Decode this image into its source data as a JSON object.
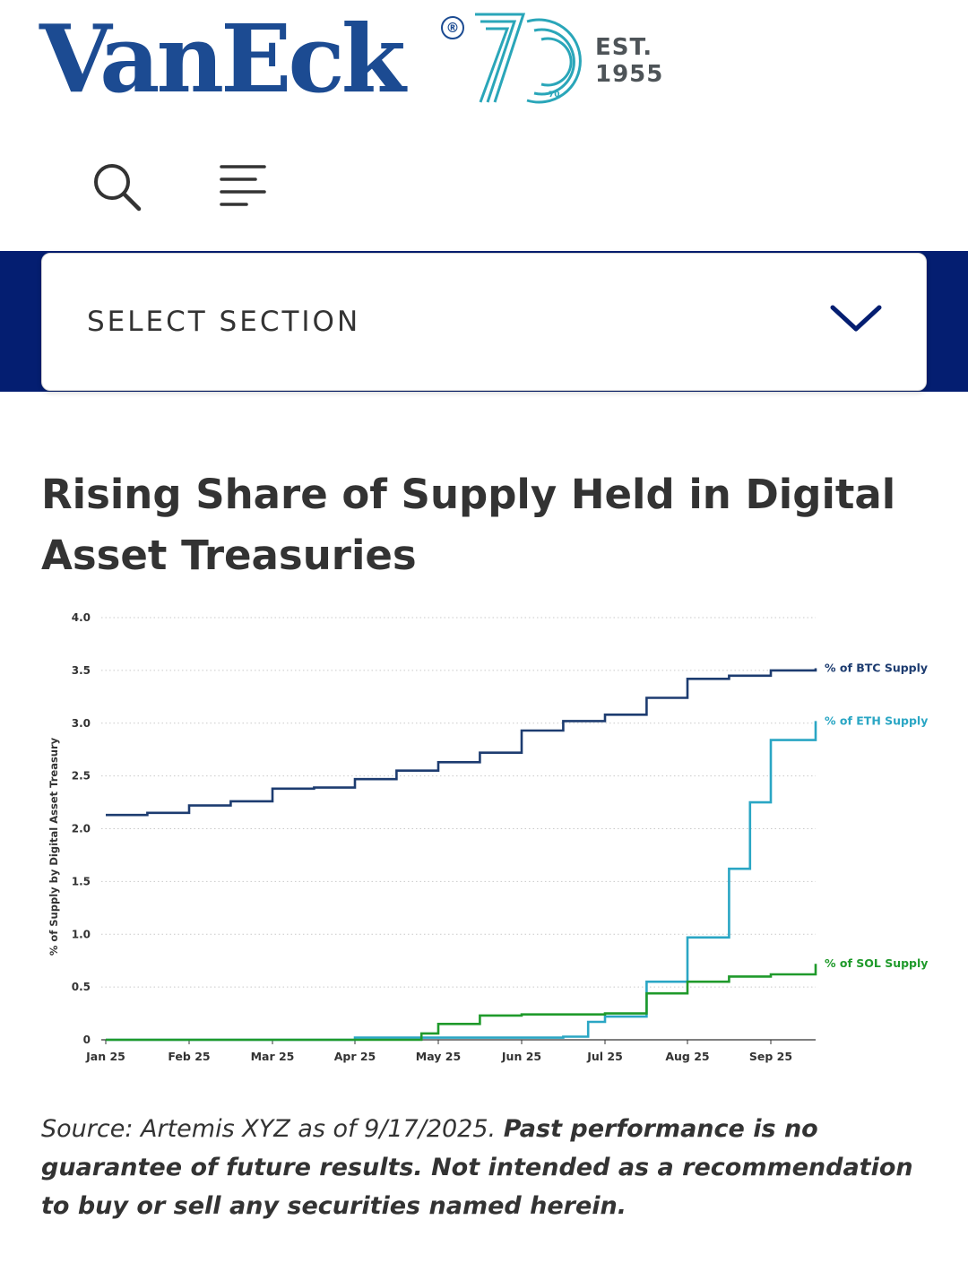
{
  "header": {
    "logo_text": "VanEck",
    "logo_registered": "®",
    "logo_anniversary": "70",
    "logo_est_line1": "EST.",
    "logo_est_line2": "1955",
    "colors": {
      "brand_blue": "#1c4b92",
      "teal": "#2aa6b9",
      "band_navy": "#041e71"
    },
    "icons": [
      "search-icon",
      "menu-icon"
    ]
  },
  "section_select": {
    "label": "SELECT SECTION",
    "icon": "chevron-down-icon"
  },
  "article": {
    "title": "Rising Share of Supply Held in Digital Asset Treasuries",
    "footnote_source": "Source: Artemis XYZ as of 9/17/2025.",
    "footnote_disclaimer": "Past performance is no guarantee of future results. Not intended as a recommendation to buy or sell any securities named herein."
  },
  "chart_data": {
    "type": "line",
    "ylabel": "% of Supply by Digital Asset Treasury",
    "ylim": [
      0,
      4.0
    ],
    "yticks": [
      "0",
      "0.5",
      "1.0",
      "1.5",
      "2.0",
      "2.5",
      "3.0",
      "3.5",
      "4.0"
    ],
    "xticks": [
      "Jan 25",
      "Feb 25",
      "Mar 25",
      "Apr 25",
      "May 25",
      "Jun 25",
      "Jul 25",
      "Aug 25",
      "Sep 25"
    ],
    "grid": "horizontal dotted",
    "series": [
      {
        "name": "% of BTC Supply",
        "color": "#1d3c70",
        "points": [
          [
            "Jan 25",
            2.13
          ],
          [
            "Jan 25 (mid)",
            2.15
          ],
          [
            "Feb 25",
            2.22
          ],
          [
            "Feb 25 (mid)",
            2.26
          ],
          [
            "Mar 25",
            2.38
          ],
          [
            "Mar 25 (mid)",
            2.39
          ],
          [
            "Apr 25",
            2.47
          ],
          [
            "Apr 25 (mid)",
            2.55
          ],
          [
            "May 25",
            2.63
          ],
          [
            "May 25 (mid)",
            2.72
          ],
          [
            "Jun 25",
            2.93
          ],
          [
            "Jun 25 (mid)",
            3.02
          ],
          [
            "Jul 25",
            3.08
          ],
          [
            "Jul 25 (mid)",
            3.24
          ],
          [
            "Aug 25",
            3.42
          ],
          [
            "Aug 25 (mid)",
            3.45
          ],
          [
            "Sep 25",
            3.5
          ],
          [
            "Sep 25 (end)",
            3.52
          ]
        ]
      },
      {
        "name": "% of ETH Supply",
        "color": "#2aa6c4",
        "points": [
          [
            "Jan 25",
            0.0
          ],
          [
            "Apr 25",
            0.02
          ],
          [
            "Jun 25 (mid)",
            0.03
          ],
          [
            "Jun 25 (late)",
            0.17
          ],
          [
            "Jul 25",
            0.22
          ],
          [
            "Jul 25 (mid)",
            0.55
          ],
          [
            "Aug 25",
            0.97
          ],
          [
            "Aug 25 (mid)",
            1.62
          ],
          [
            "Sep 25 (early)",
            2.25
          ],
          [
            "Sep 25",
            2.84
          ],
          [
            "Sep 25 (end)",
            3.02
          ]
        ]
      },
      {
        "name": "% of SOL Supply",
        "color": "#1f9a2b",
        "points": [
          [
            "Jan 25",
            0.0
          ],
          [
            "Apr 25",
            0.0
          ],
          [
            "Apr 25 (late)",
            0.06
          ],
          [
            "May 25",
            0.15
          ],
          [
            "May 25 (mid)",
            0.23
          ],
          [
            "Jun 25",
            0.24
          ],
          [
            "Jul 25",
            0.25
          ],
          [
            "Jul 25 (mid)",
            0.44
          ],
          [
            "Aug 25",
            0.55
          ],
          [
            "Aug 25 (mid)",
            0.6
          ],
          [
            "Sep 25",
            0.62
          ],
          [
            "Sep 25 (end)",
            0.72
          ]
        ]
      }
    ]
  }
}
